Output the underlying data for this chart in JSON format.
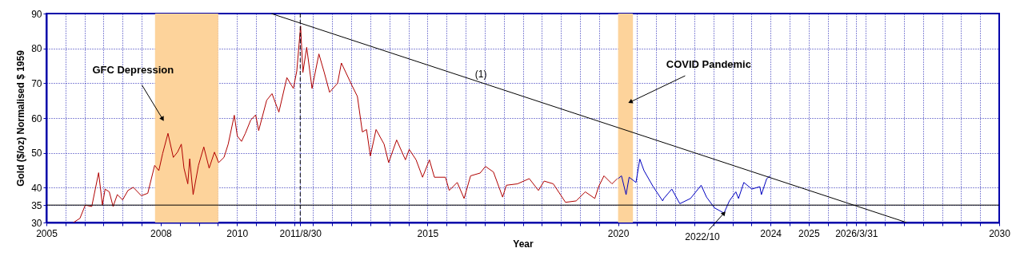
{
  "chart_data": {
    "type": "line",
    "xlabel": "Year",
    "ylabel": "Gold ($/oz) Normalised $ 1959",
    "xlim": [
      2005,
      2030
    ],
    "ylim": [
      30,
      90
    ],
    "xticks": [
      2005,
      {
        "value": 2005.5,
        "label": null
      },
      {
        "value": 2006,
        "label": null
      },
      {
        "value": 2006.5,
        "label": null
      },
      {
        "value": 2007,
        "label": null
      },
      {
        "value": 2007.5,
        "label": null
      },
      2008,
      {
        "value": 2008.5,
        "label": null
      },
      {
        "value": 2009,
        "label": null
      },
      {
        "value": 2009.5,
        "label": null
      },
      2010,
      {
        "value": 2010.5,
        "label": null
      },
      {
        "value": 2011,
        "label": null
      },
      {
        "value": 2011.5,
        "label": null
      },
      {
        "value": 2011.66,
        "label": "2011/8/30"
      },
      {
        "value": 2012,
        "label": null
      },
      {
        "value": 2012.5,
        "label": null
      },
      {
        "value": 2013,
        "label": null
      },
      {
        "value": 2013.5,
        "label": null
      },
      {
        "value": 2014,
        "label": null
      },
      {
        "value": 2014.5,
        "label": null
      },
      2015,
      {
        "value": 2015.5,
        "label": null
      },
      {
        "value": 2016,
        "label": null
      },
      {
        "value": 2016.5,
        "label": null
      },
      {
        "value": 2017,
        "label": null
      },
      {
        "value": 2017.5,
        "label": null
      },
      {
        "value": 2018,
        "label": null
      },
      {
        "value": 2018.5,
        "label": null
      },
      {
        "value": 2019,
        "label": null
      },
      {
        "value": 2019.5,
        "label": null
      },
      2020,
      {
        "value": 2020.5,
        "label": null
      },
      {
        "value": 2021,
        "label": null
      },
      {
        "value": 2021.5,
        "label": null
      },
      {
        "value": 2022,
        "label": null
      },
      {
        "value": 2022.5,
        "label": null
      },
      {
        "value": 2023,
        "label": null
      },
      {
        "value": 2023.5,
        "label": null
      },
      2024,
      {
        "value": 2024.5,
        "label": null
      },
      2025,
      {
        "value": 2025.5,
        "label": null
      },
      {
        "value": 2026,
        "label": null
      },
      {
        "value": 2026.25,
        "label": "2026/3/31"
      },
      {
        "value": 2026.5,
        "label": null
      },
      {
        "value": 2027,
        "label": null
      },
      {
        "value": 2027.5,
        "label": null
      },
      {
        "value": 2028,
        "label": null
      },
      {
        "value": 2028.5,
        "label": null
      },
      {
        "value": 2029,
        "label": null
      },
      {
        "value": 2029.5,
        "label": null
      },
      2030
    ],
    "yticks": [
      30,
      35,
      40,
      50,
      60,
      70,
      80,
      90
    ],
    "grid": true,
    "series": [
      {
        "color": "#b00000",
        "x": [
          2005.71,
          2005.88,
          2006.02,
          2006.19,
          2006.37,
          2006.47,
          2006.54,
          2006.65,
          2006.75,
          2006.86,
          2007.0,
          2007.14,
          2007.28,
          2007.49,
          2007.66,
          2007.84,
          2007.95,
          2008.05,
          2008.19,
          2008.33,
          2008.44,
          2008.54,
          2008.61,
          2008.71,
          2008.76,
          2008.85,
          2008.99,
          2009.13,
          2009.27,
          2009.41,
          2009.52,
          2009.66,
          2009.77,
          2009.93,
          2010.01,
          2010.12,
          2010.22,
          2010.36,
          2010.49,
          2010.57,
          2010.78,
          2010.92,
          2011.1,
          2011.31,
          2011.48,
          2011.57,
          2011.67,
          2011.73,
          2011.83,
          2011.97,
          2012.15,
          2012.29,
          2012.43,
          2012.64,
          2012.74,
          2013.02,
          2013.16,
          2013.29,
          2013.4,
          2013.5,
          2013.65,
          2013.86,
          2013.98,
          2014.19,
          2014.42,
          2014.52,
          2014.7,
          2014.87,
          2015.05,
          2015.18,
          2015.47,
          2015.57,
          2015.78,
          2015.96,
          2016.13,
          2016.38,
          2016.52,
          2016.73,
          2016.97,
          2017.07,
          2017.36,
          2017.67,
          2017.91,
          2018.06,
          2018.3,
          2018.62,
          2018.9,
          2019.14,
          2019.39,
          2019.49,
          2019.63,
          2019.84,
          2019.98
        ],
        "values": [
          30,
          31.2,
          35,
          34.6,
          44.3,
          35,
          39.6,
          38.8,
          34.6,
          38,
          36.5,
          39.2,
          40.1,
          37.7,
          38.4,
          46.4,
          44.9,
          49.8,
          55.6,
          48.7,
          50.2,
          52.5,
          45.6,
          41.1,
          48.3,
          38,
          46.4,
          51.7,
          45.6,
          50.2,
          47.2,
          48.7,
          52.5,
          60.8,
          54.8,
          53.3,
          55.6,
          59.4,
          60.9,
          56.4,
          65.1,
          67,
          61.7,
          71.6,
          68.5,
          73.5,
          86.4,
          73.1,
          80.3,
          68.5,
          78.4,
          73.1,
          67.4,
          70,
          75.8,
          69.3,
          66.2,
          56,
          56.7,
          49.1,
          56.7,
          52.5,
          47.2,
          53.7,
          48,
          51,
          48,
          43,
          48,
          43,
          43,
          39.2,
          41.5,
          36.9,
          43.4,
          44.2,
          46.1,
          44.5,
          37.3,
          40.7,
          41.1,
          42.6,
          39.2,
          41.9,
          41.1,
          35.8,
          36.2,
          38.8,
          36.9,
          40.3,
          43.4,
          41.1,
          42.6
        ]
      },
      {
        "color": "#0000c0",
        "x": [
          2020.0,
          2020.09,
          2020.21,
          2020.29,
          2020.47,
          2020.57,
          2020.68,
          2020.92,
          2021.17,
          2021.2,
          2021.41,
          2021.62,
          2021.9,
          2022.18,
          2022.32,
          2022.53,
          2022.78,
          2022.92,
          2023.09,
          2023.16,
          2023.3,
          2023.51,
          2023.72,
          2023.76,
          2023.9,
          2023.99
        ],
        "values": [
          42.6,
          43.4,
          38,
          43,
          41.5,
          48.2,
          44.9,
          40.3,
          36.2,
          36.9,
          39.6,
          35.4,
          36.9,
          40.7,
          37.3,
          34.2,
          32.7,
          36.2,
          38.8,
          36.9,
          41.5,
          39.6,
          40.3,
          38,
          42.6,
          43.4
        ]
      },
      {
        "type": "line",
        "name": "(1)",
        "color": "#000000",
        "x": [
          2010.9,
          2027.57
        ],
        "values": [
          90,
          30
        ]
      }
    ],
    "bands": [
      {
        "axis": "x",
        "from": 2007.85,
        "to": 2009.51,
        "color": "#fdd39b"
      },
      {
        "axis": "x",
        "from": 2020.0,
        "to": 2020.39,
        "color": "#fdd39b"
      }
    ],
    "ref_lines": [
      {
        "axis": "y",
        "value": 35,
        "color": "#000000",
        "line_style": "solid"
      },
      {
        "axis": "x",
        "value": 2011.66,
        "color": "#000000",
        "line_style": "dashed"
      }
    ],
    "annotations": [
      {
        "text": "GFC Depression",
        "x": 2008.05,
        "y": 59.7
      },
      {
        "text": "COVID Pandemic",
        "x": 2020.32,
        "y": 64.6
      },
      {
        "text": "2022/10",
        "x": 2022.78,
        "y": 32.7
      }
    ]
  }
}
